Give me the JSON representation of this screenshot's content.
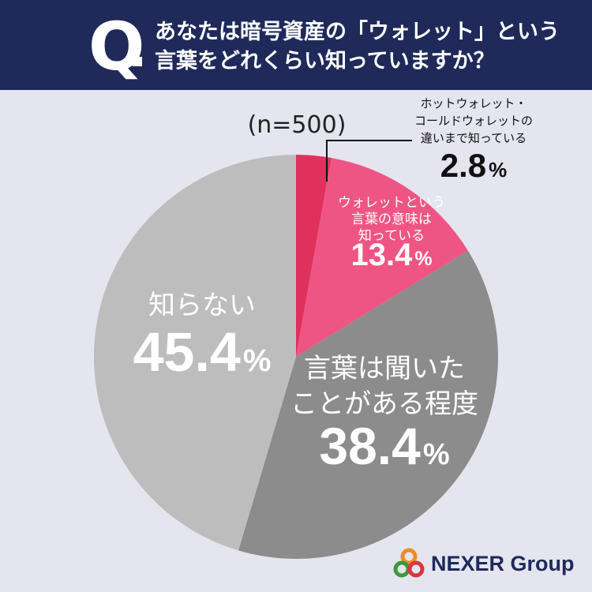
{
  "header": {
    "q_mark": "Q",
    "question_line1": "あなたは暗号資産の「ウォレット」という",
    "question_line2": "言葉をどれくらい知っていますか？"
  },
  "chart_data": {
    "type": "pie",
    "sample_note": "(n=500)",
    "slices": [
      {
        "label_lines": [
          "ホットウォレット・",
          "コールドウォレットの",
          "違いまで知っている"
        ],
        "value": 2.8,
        "display": "2.8",
        "color": "#e0305c"
      },
      {
        "label_lines": [
          "ウォレットという",
          "言葉の意味は",
          "知っている"
        ],
        "value": 13.4,
        "display": "13.4",
        "color": "#ee5585"
      },
      {
        "label_lines": [
          "言葉は聞いた",
          "ことがある程度"
        ],
        "value": 38.4,
        "display": "38.4",
        "color": "#8c8c8c"
      },
      {
        "label_lines": [
          "知らない"
        ],
        "value": 45.4,
        "display": "45.4",
        "color": "#bdbdbd"
      }
    ],
    "percent_sign": "%"
  },
  "brand": {
    "name": "NEXER Group",
    "colors": {
      "navy": "#1f2a5a",
      "orange": "#f08a24",
      "green": "#3a9a3a",
      "red": "#d9363e"
    }
  }
}
